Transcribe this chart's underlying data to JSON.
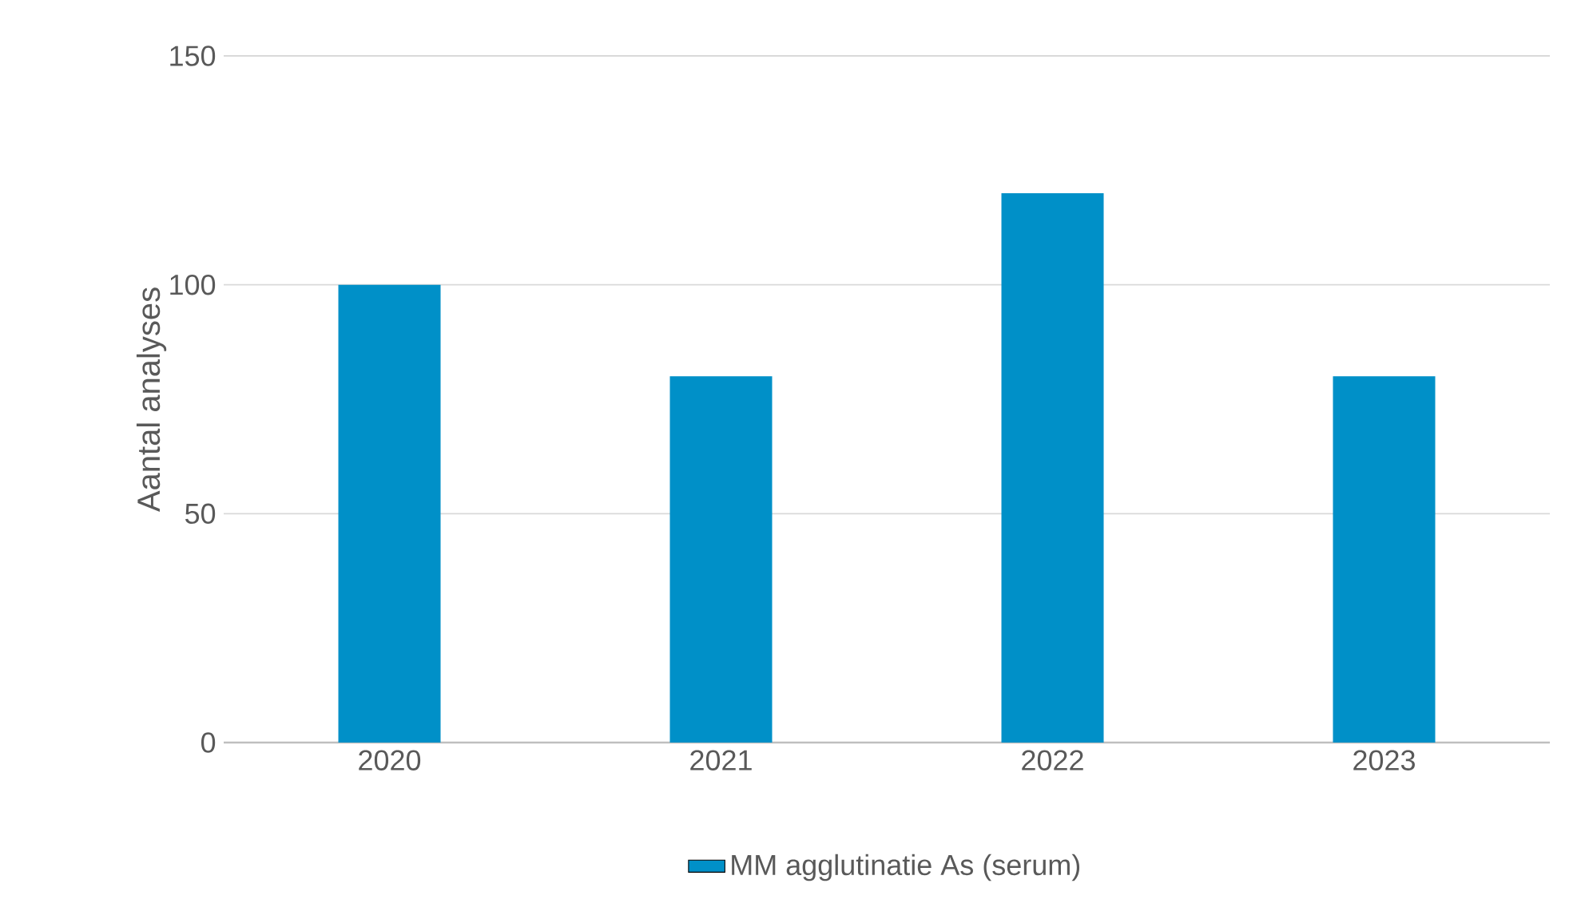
{
  "chart_data": {
    "type": "bar",
    "ylabel": "Aantal analyses",
    "categories": [
      "2020",
      "2021",
      "2022",
      "2023"
    ],
    "series": [
      {
        "name": "MM agglutinatie  As (serum)",
        "color": "#0090c8",
        "values": [
          100,
          80,
          120,
          80
        ]
      }
    ],
    "ylim": [
      0,
      150
    ],
    "yticks": [
      0,
      50,
      100,
      150
    ],
    "grid": "y",
    "legend": "bottom"
  }
}
